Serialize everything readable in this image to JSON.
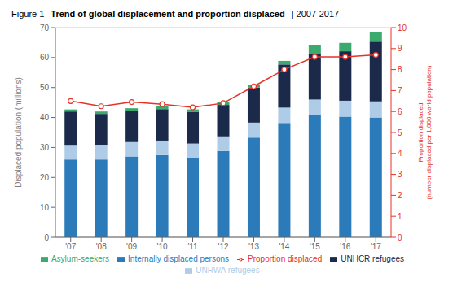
{
  "chart_data": {
    "type": "bar",
    "title": "Trend of global displacement and proportion displaced",
    "annotations": [
      "Figure 1",
      "| 2007-2017"
    ],
    "categories": [
      "'07",
      "'08",
      "'09",
      "'10",
      "'11",
      "'12",
      "'13",
      "'14",
      "'15",
      "'16",
      "'17"
    ],
    "y_label": "Displaced population (millions)",
    "y2_label": "Proportion displaced\n(number displaced per 1,000 world population)",
    "ylim": [
      0,
      70
    ],
    "yticks": [
      0,
      10,
      20,
      30,
      40,
      50,
      60,
      70
    ],
    "y2lim": [
      0,
      10
    ],
    "y2ticks": [
      0,
      1,
      2,
      3,
      4,
      5,
      6,
      7,
      8,
      9,
      10
    ],
    "stacked": true,
    "grid": true,
    "legend": "bottom",
    "series": [
      {
        "name": "Internally displaced persons",
        "type": "bar",
        "color": "#2b7bba",
        "values": [
          26.0,
          26.0,
          27.0,
          27.5,
          26.5,
          28.8,
          33.3,
          38.2,
          40.8,
          40.3,
          40.0
        ]
      },
      {
        "name": "UNRWA refugees",
        "type": "bar",
        "color": "#aecce8",
        "values": [
          4.6,
          4.7,
          4.8,
          4.8,
          4.8,
          4.9,
          5.0,
          5.1,
          5.2,
          5.3,
          5.4
        ]
      },
      {
        "name": "UNHCR refugees",
        "type": "bar",
        "color": "#1b2a4a",
        "values": [
          11.4,
          10.5,
          10.4,
          10.5,
          10.5,
          10.5,
          11.7,
          14.4,
          15.1,
          16.5,
          19.9
        ]
      },
      {
        "name": "Asylum-seekers",
        "type": "bar",
        "color": "#3aaa6e",
        "values": [
          0.7,
          0.8,
          0.9,
          0.9,
          0.9,
          0.9,
          1.0,
          1.2,
          3.2,
          2.8,
          3.1
        ]
      },
      {
        "name": "Proportion displaced",
        "type": "line",
        "axis": "y2",
        "marker": "circle",
        "color": "#e63228",
        "values": [
          6.5,
          6.25,
          6.45,
          6.35,
          6.2,
          6.4,
          7.2,
          8.0,
          8.6,
          8.6,
          8.7
        ]
      }
    ]
  }
}
